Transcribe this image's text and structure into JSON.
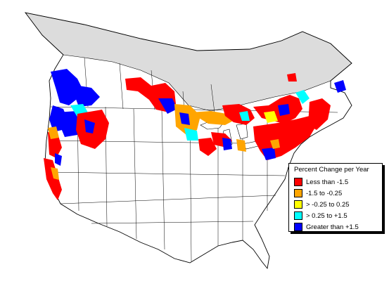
{
  "legend": {
    "title": "Percent Change per Year",
    "items": [
      {
        "label": "Less than -1.5",
        "color": "#ff0000"
      },
      {
        "label": "-1.5 to -0.25",
        "color": "#ffa500"
      },
      {
        "label": "> -0.25 to 0.25",
        "color": "#ffff00"
      },
      {
        "label": "> 0.25 to +1.5",
        "color": "#00ffff"
      },
      {
        "label": "Greater than +1.5",
        "color": "#0000ff"
      }
    ]
  },
  "colors": {
    "no_data_region": "#dcdcdc",
    "boundaries": "#000000",
    "background": "#ffffff"
  }
}
